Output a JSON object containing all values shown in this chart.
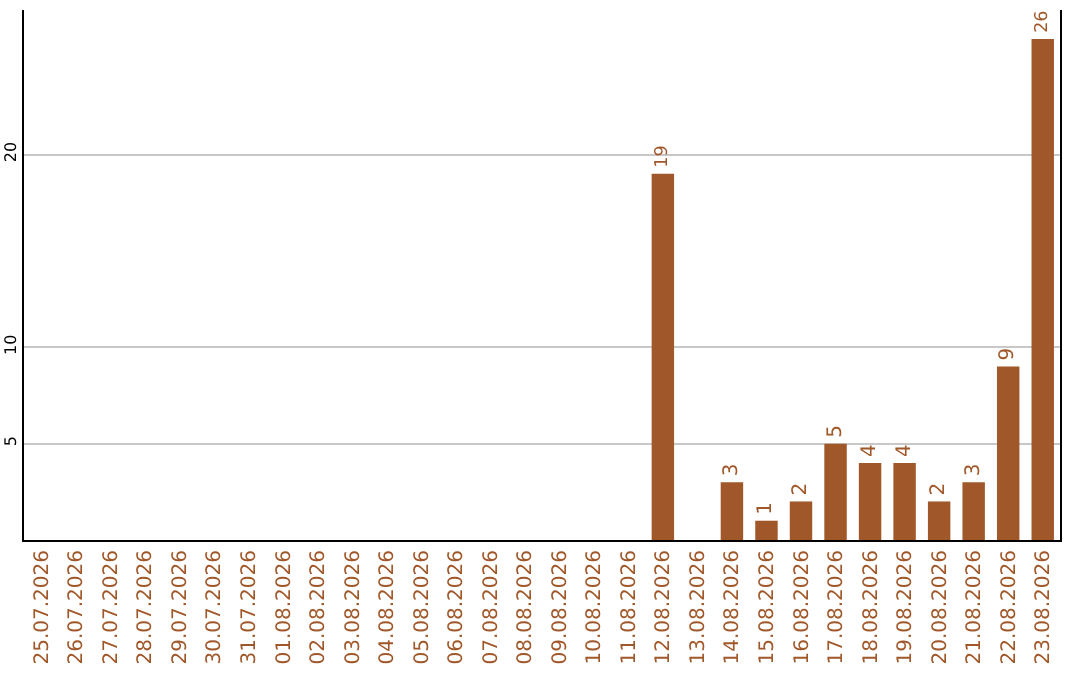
{
  "chart_data": {
    "type": "bar",
    "categories": [
      "25.07.2026",
      "26.07.2026",
      "27.07.2026",
      "28.07.2026",
      "29.07.2026",
      "30.07.2026",
      "31.07.2026",
      "01.08.2026",
      "02.08.2026",
      "03.08.2026",
      "04.08.2026",
      "05.08.2026",
      "06.08.2026",
      "07.08.2026",
      "08.08.2026",
      "09.08.2026",
      "10.08.2026",
      "11.08.2026",
      "12.08.2026",
      "13.08.2026",
      "14.08.2026",
      "15.08.2026",
      "16.08.2026",
      "17.08.2026",
      "18.08.2026",
      "19.08.2026",
      "20.08.2026",
      "21.08.2026",
      "22.08.2026",
      "23.08.2026"
    ],
    "values": [
      0,
      0,
      0,
      0,
      0,
      0,
      0,
      0,
      0,
      0,
      0,
      0,
      0,
      0,
      0,
      0,
      0,
      0,
      19,
      0,
      3,
      1,
      2,
      5,
      4,
      4,
      2,
      3,
      9,
      26
    ],
    "value_labels": [
      null,
      null,
      null,
      null,
      null,
      null,
      null,
      null,
      null,
      null,
      null,
      null,
      null,
      null,
      null,
      null,
      null,
      null,
      "19",
      null,
      "3",
      "1",
      "2",
      "5",
      "4",
      "4",
      "2",
      "3",
      "9",
      "26"
    ],
    "color": "#a0582a",
    "ylim": [
      0,
      27.5
    ],
    "yticks": [
      5,
      10,
      20
    ],
    "grid": "y",
    "legend": false
  }
}
